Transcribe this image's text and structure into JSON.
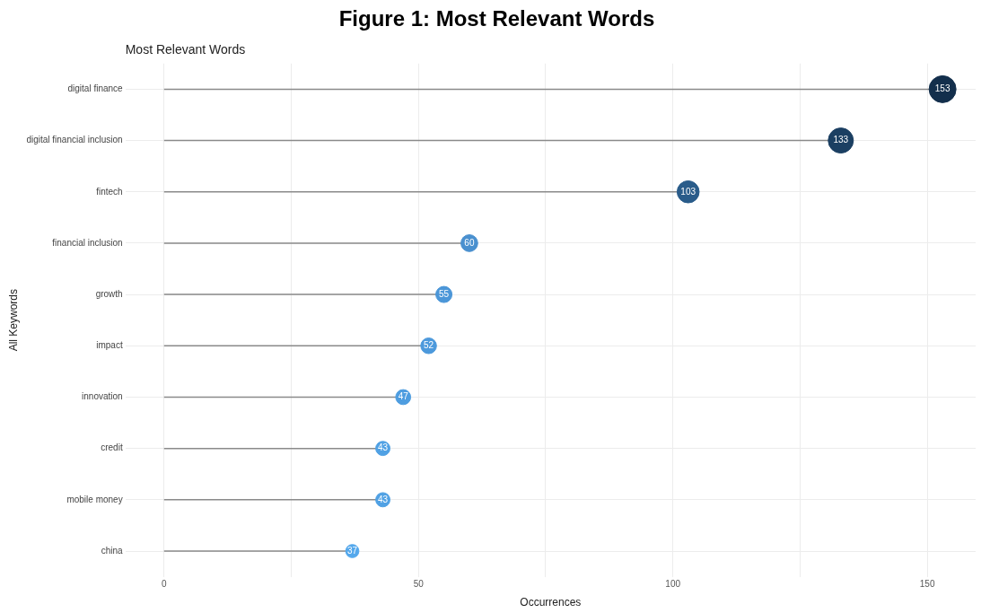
{
  "chart_data": {
    "type": "lollipop",
    "orientation": "horizontal",
    "title": "Figure 1: Most Relevant Words",
    "subtitle": "Most Relevant Words",
    "xlabel": "Occurrences",
    "ylabel": "All Keywords",
    "categories": [
      "digital finance",
      "digital financial inclusion",
      "fintech",
      "financial inclusion",
      "growth",
      "impact",
      "innovation",
      "credit",
      "mobile money",
      "china"
    ],
    "values": [
      153,
      133,
      103,
      60,
      55,
      52,
      47,
      43,
      43,
      37
    ],
    "sizes": [
      1,
      0.87,
      0.67,
      0.39,
      0.36,
      0.34,
      0.31,
      0.28,
      0.28,
      0.24
    ],
    "colors": [
      "#132f4c",
      "#1b3f62",
      "#2a5c8a",
      "#4a90cf",
      "#4b96d8",
      "#4c99dc",
      "#4e9de0",
      "#50a1e4",
      "#50a1e4",
      "#54a8ec"
    ],
    "xlim": [
      -7.6,
      159.5
    ],
    "xticks": [
      0,
      {
        "value": 25,
        "label": null
      },
      50,
      {
        "value": 75,
        "label": null
      },
      100,
      {
        "value": 125,
        "label": null
      },
      150
    ],
    "grid": true,
    "data_labels": true
  }
}
